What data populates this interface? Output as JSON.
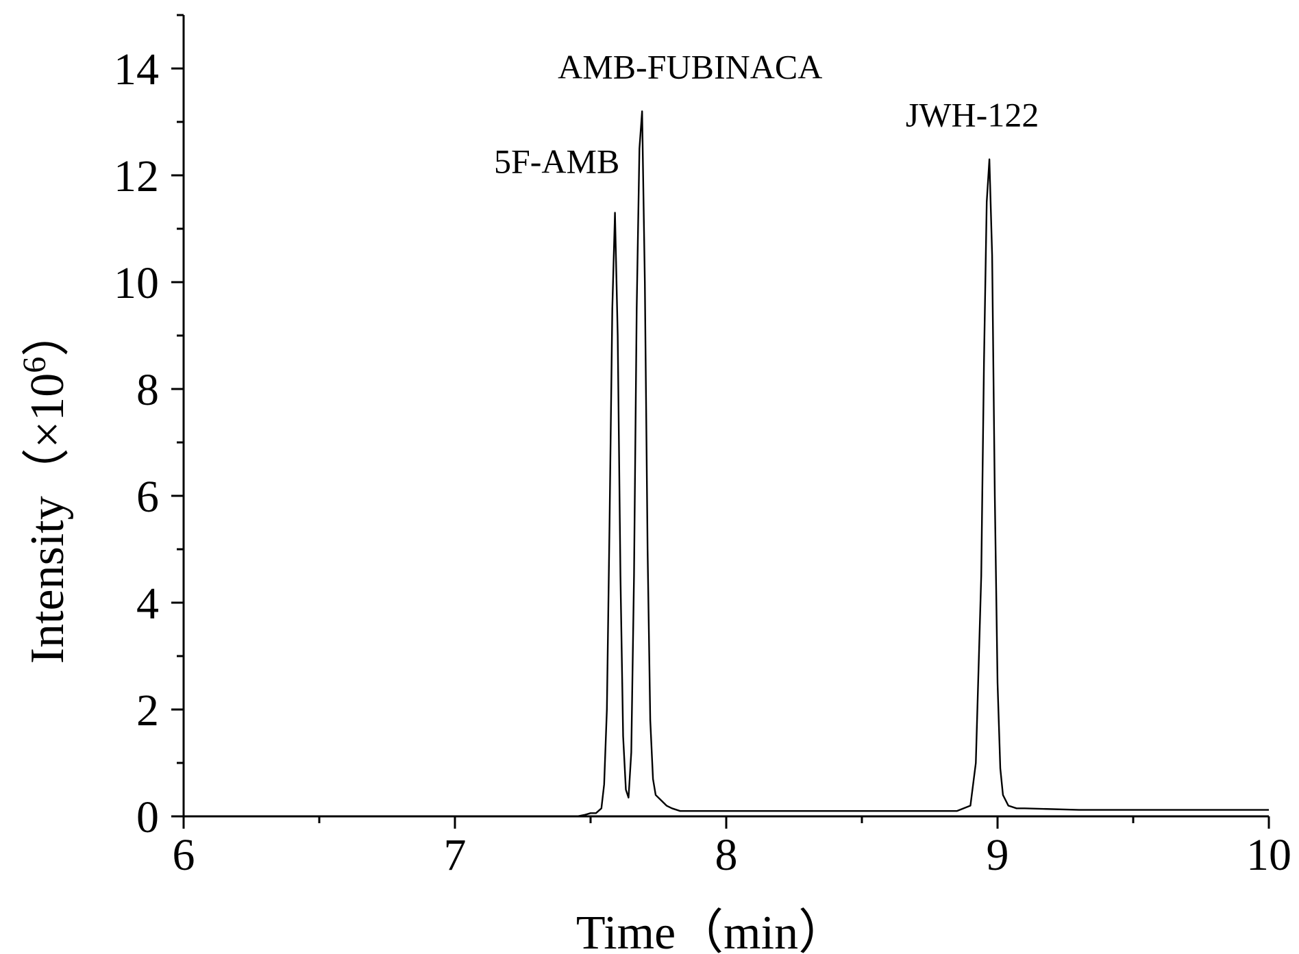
{
  "chart_data": {
    "type": "line",
    "xlabel": "Time（min）",
    "ylabel": "Intensity（×10",
    "ylabel_superscript": "6",
    "ylabel_suffix": "）",
    "xlim": [
      6,
      10
    ],
    "ylim": [
      0,
      15
    ],
    "x_ticks": [
      "6",
      "7",
      "8",
      "9",
      "10"
    ],
    "y_ticks": [
      "0",
      "2",
      "4",
      "6",
      "8",
      "10",
      "12",
      "14"
    ],
    "x_tick_values": [
      6,
      7,
      8,
      9,
      10
    ],
    "y_tick_values": [
      0,
      2,
      4,
      6,
      8,
      10,
      12,
      14
    ],
    "x_minor_step": 0.5,
    "y_minor_step": 1,
    "grid": false,
    "peaks": [
      {
        "label": "5F-AMB",
        "x": 7.59,
        "y": 11.3
      },
      {
        "label": "AMB-FUBINACA",
        "x": 7.69,
        "y": 13.2
      },
      {
        "label": "JWH-122",
        "x": 8.97,
        "y": 12.3
      }
    ],
    "series": [
      {
        "x": [
          6.0,
          7.45,
          7.48,
          7.5,
          7.52,
          7.54,
          7.55,
          7.56,
          7.57,
          7.58,
          7.59,
          7.6,
          7.61,
          7.62,
          7.63,
          7.64,
          7.65,
          7.66,
          7.67,
          7.68,
          7.69,
          7.7,
          7.71,
          7.72,
          7.73,
          7.74,
          7.76,
          7.78,
          7.8,
          7.83,
          7.86,
          8.0,
          8.3,
          8.6,
          8.85,
          8.9,
          8.92,
          8.94,
          8.95,
          8.96,
          8.97,
          8.98,
          8.99,
          9.0,
          9.01,
          9.02,
          9.04,
          9.07,
          9.1,
          9.3,
          9.6,
          10.0
        ],
        "y": [
          0.0,
          0.0,
          0.03,
          0.06,
          0.06,
          0.15,
          0.6,
          2.0,
          5.5,
          9.5,
          11.3,
          9.0,
          4.5,
          1.5,
          0.5,
          0.35,
          1.2,
          4.5,
          9.5,
          12.5,
          13.2,
          10.0,
          5.0,
          1.8,
          0.7,
          0.4,
          0.3,
          0.2,
          0.15,
          0.1,
          0.1,
          0.1,
          0.1,
          0.1,
          0.1,
          0.2,
          1.0,
          4.5,
          8.5,
          11.5,
          12.3,
          10.5,
          6.0,
          2.5,
          0.9,
          0.4,
          0.2,
          0.15,
          0.15,
          0.12,
          0.12,
          0.12
        ]
      }
    ]
  }
}
